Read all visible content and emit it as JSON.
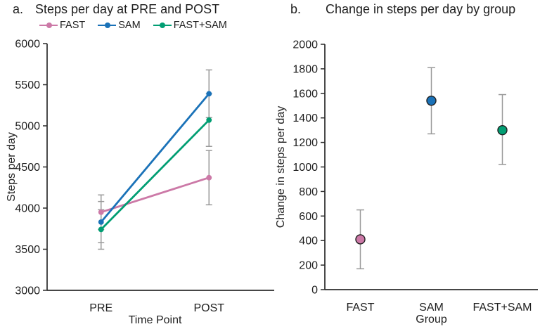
{
  "colors": {
    "fast": "#CC79A7",
    "sam": "#1A72B8",
    "fast_sam": "#019E73",
    "error_bar": "#9A9A9A",
    "axis": "#2B2B2B",
    "text": "#1F1F1F",
    "background": "#FFFFFF"
  },
  "chart_data": [
    {
      "id": "a",
      "type": "line",
      "panel_label": "a.",
      "title": "Steps per day at PRE and POST",
      "xlabel": "Time Point",
      "ylabel": "Steps per day",
      "categories": [
        "PRE",
        "POST"
      ],
      "ylim": [
        3000,
        6000
      ],
      "ytick_step": 500,
      "grid": false,
      "legend_position": "top",
      "error_bars": true,
      "series": [
        {
          "name": "FAST",
          "color": "#CC79A7",
          "values": [
            3950,
            4370
          ],
          "err_low": [
            3740,
            4040
          ],
          "err_high": [
            4160,
            4700
          ]
        },
        {
          "name": "SAM",
          "color": "#1A72B8",
          "values": [
            3830,
            5390
          ],
          "err_low": [
            3580,
            5100
          ],
          "err_high": [
            4080,
            5680
          ]
        },
        {
          "name": "FAST+SAM",
          "color": "#019E73",
          "values": [
            3740,
            5070
          ],
          "err_low": [
            3500,
            4750
          ],
          "err_high": [
            3980,
            5390
          ]
        }
      ]
    },
    {
      "id": "b",
      "type": "scatter",
      "panel_label": "b.",
      "title": "Change in steps per day by group",
      "xlabel": "Group",
      "ylabel": "Change in steps per day",
      "categories": [
        "FAST",
        "SAM",
        "FAST+SAM"
      ],
      "ylim": [
        0,
        2000
      ],
      "ytick_step": 200,
      "grid": false,
      "legend_position": "none",
      "error_bars": true,
      "series": [
        {
          "name": "FAST",
          "color": "#CC79A7",
          "values": [
            410
          ],
          "err_low": [
            170
          ],
          "err_high": [
            650
          ]
        },
        {
          "name": "SAM",
          "color": "#1A72B8",
          "values": [
            1540
          ],
          "err_low": [
            1270
          ],
          "err_high": [
            1810
          ]
        },
        {
          "name": "FAST+SAM",
          "color": "#019E73",
          "values": [
            1300
          ],
          "err_low": [
            1020
          ],
          "err_high": [
            1590
          ]
        }
      ]
    }
  ]
}
